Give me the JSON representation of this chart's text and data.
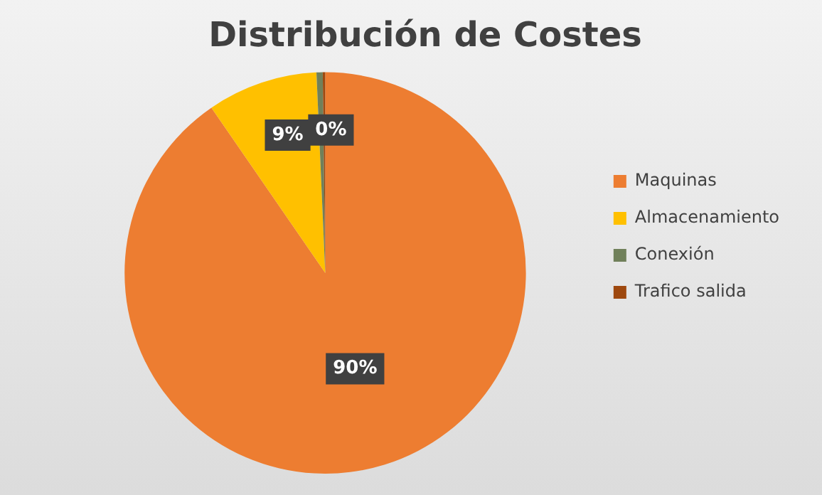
{
  "chart_data": {
    "type": "pie",
    "title": "Distribución de Costes",
    "categories": [
      "Maquinas",
      "Almacenamiento",
      "Conexión",
      "Trafico salida"
    ],
    "values": [
      90.4,
      8.9,
      0.5,
      0.2
    ],
    "colors": [
      "#ed7d31",
      "#ffc000",
      "#70805a",
      "#9e480e"
    ],
    "value_labels": [
      "90%",
      "9%",
      "0%",
      null
    ],
    "legend": "right"
  }
}
